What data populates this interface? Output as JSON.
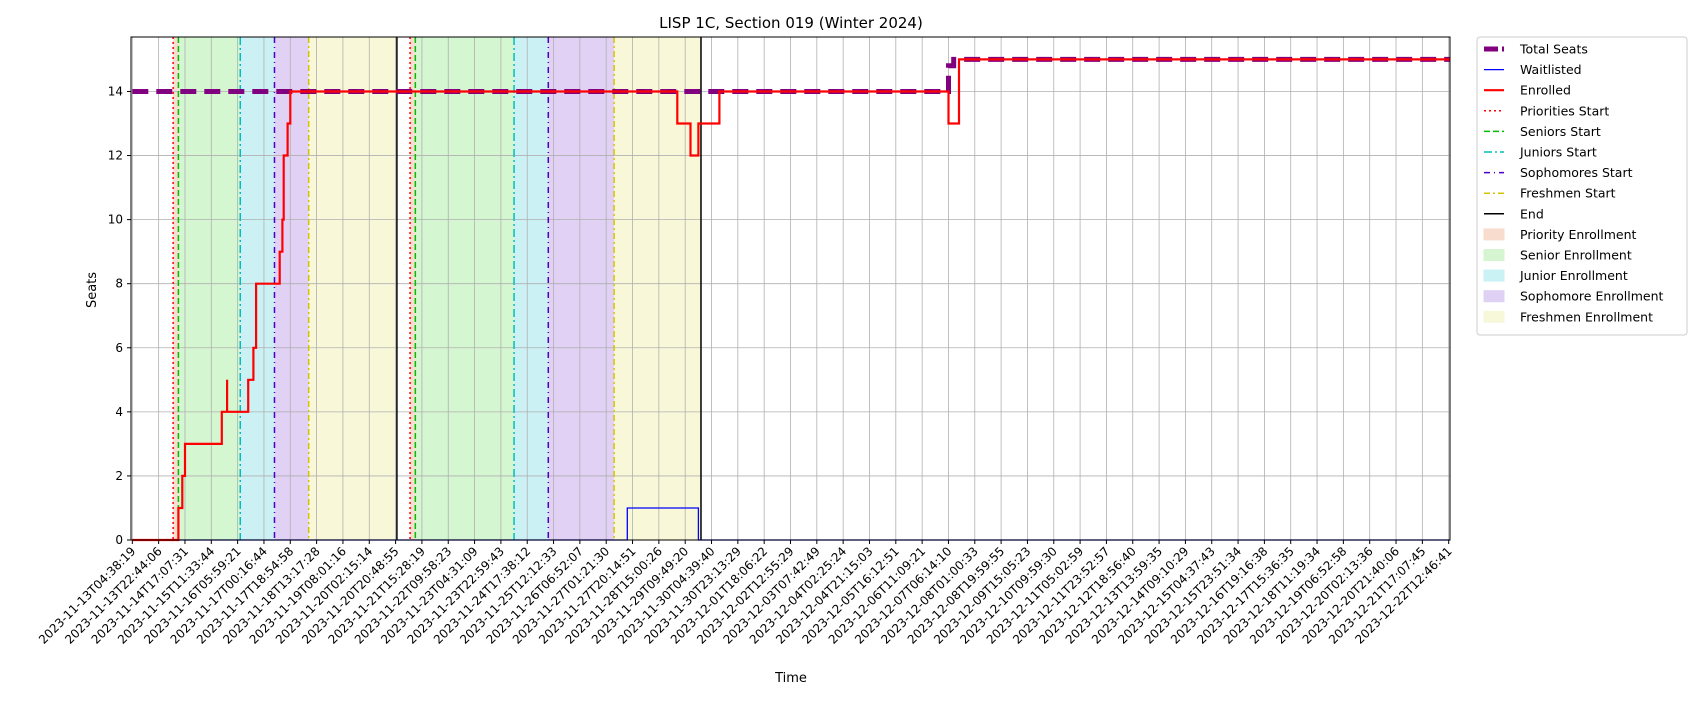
{
  "chart_data": {
    "type": "line",
    "title": "LISP 1C, Section 019 (Winter 2024)",
    "xlabel": "Time",
    "ylabel": "Seats",
    "ylim": [
      0,
      15.7
    ],
    "yticks": [
      0,
      2,
      4,
      6,
      8,
      10,
      12,
      14
    ],
    "grid": true,
    "legend_position": "outside-right",
    "x_tick_labels": [
      "2023-11-13T04:38:19",
      "2023-11-13T22:44:06",
      "2023-11-14T17:07:31",
      "2023-11-15T11:33:44",
      "2023-11-16T05:59:21",
      "2023-11-17T00:16:44",
      "2023-11-17T18:54:58",
      "2023-11-18T13:17:28",
      "2023-11-19T08:01:16",
      "2023-11-20T02:15:14",
      "2023-11-20T20:48:55",
      "2023-11-21T15:28:19",
      "2023-11-22T09:58:23",
      "2023-11-23T04:31:09",
      "2023-11-23T22:59:43",
      "2023-11-24T17:38:12",
      "2023-11-25T12:12:33",
      "2023-11-26T06:52:07",
      "2023-11-27T01:21:30",
      "2023-11-27T20:14:51",
      "2023-11-28T15:00:26",
      "2023-11-29T09:49:20",
      "2023-11-30T04:39:40",
      "2023-11-30T23:13:29",
      "2023-12-01T18:06:22",
      "2023-12-02T12:55:29",
      "2023-12-03T07:42:49",
      "2023-12-04T02:25:24",
      "2023-12-04T21:15:03",
      "2023-12-05T16:12:51",
      "2023-12-06T11:09:21",
      "2023-12-07T06:14:10",
      "2023-12-08T01:00:33",
      "2023-12-08T19:59:55",
      "2023-12-09T15:05:23",
      "2023-12-10T09:59:30",
      "2023-12-11T05:02:59",
      "2023-12-11T23:52:57",
      "2023-12-12T18:56:40",
      "2023-12-13T13:59:35",
      "2023-12-14T09:10:29",
      "2023-12-15T04:37:43",
      "2023-12-15T23:51:34",
      "2023-12-16T19:16:38",
      "2023-12-17T15:36:35",
      "2023-12-18T11:19:34",
      "2023-12-19T06:52:58",
      "2023-12-20T02:13:36",
      "2023-12-20T21:40:06",
      "2023-12-21T17:07:45",
      "2023-12-22T12:46:41"
    ],
    "x_range_index": [
      -0.05,
      50.05
    ],
    "series": [
      {
        "name": "Total Seats",
        "color": "#800080",
        "style": "dashed-thick",
        "points": [
          [
            0,
            14
          ],
          [
            31,
            14
          ],
          [
            31,
            14.8
          ],
          [
            31.2,
            14.8
          ],
          [
            31.2,
            15
          ],
          [
            50.05,
            15
          ]
        ]
      },
      {
        "name": "Waitlisted",
        "color": "#0000ff",
        "style": "solid-thin",
        "points": [
          [
            0,
            0
          ],
          [
            18.8,
            0
          ],
          [
            18.8,
            1
          ],
          [
            21.5,
            1
          ],
          [
            21.5,
            0
          ],
          [
            50.05,
            0
          ]
        ]
      },
      {
        "name": "Enrolled",
        "color": "#ff0000",
        "style": "solid-thick",
        "points": [
          [
            0,
            0
          ],
          [
            1.75,
            0
          ],
          [
            1.75,
            1
          ],
          [
            1.9,
            1
          ],
          [
            1.9,
            2
          ],
          [
            2.0,
            2
          ],
          [
            2.0,
            3
          ],
          [
            3.4,
            3
          ],
          [
            3.4,
            4
          ],
          [
            3.6,
            4
          ],
          [
            3.6,
            5
          ],
          [
            3.6,
            4
          ],
          [
            4.4,
            4
          ],
          [
            4.4,
            5
          ],
          [
            4.6,
            5
          ],
          [
            4.6,
            6
          ],
          [
            4.7,
            6
          ],
          [
            4.7,
            8
          ],
          [
            5.6,
            8
          ],
          [
            5.6,
            9
          ],
          [
            5.7,
            9
          ],
          [
            5.7,
            10
          ],
          [
            5.75,
            10
          ],
          [
            5.75,
            12
          ],
          [
            5.9,
            12
          ],
          [
            5.9,
            13
          ],
          [
            6.0,
            13
          ],
          [
            6.0,
            14
          ],
          [
            20.7,
            14
          ],
          [
            20.7,
            13
          ],
          [
            21.2,
            13
          ],
          [
            21.2,
            12
          ],
          [
            21.5,
            12
          ],
          [
            21.5,
            13
          ],
          [
            22.3,
            13
          ],
          [
            22.3,
            14
          ],
          [
            31.0,
            14
          ],
          [
            31.0,
            13
          ],
          [
            31.4,
            13
          ],
          [
            31.4,
            15
          ],
          [
            50.05,
            15
          ]
        ]
      }
    ],
    "markers": [
      {
        "name": "Priorities Start",
        "color": "#ff0000",
        "dash": "2,3",
        "x": [
          1.55,
          10.55
        ]
      },
      {
        "name": "Seniors Start",
        "color": "#00c000",
        "dash": "6,3",
        "x": [
          1.75,
          10.75
        ]
      },
      {
        "name": "Juniors Start",
        "color": "#00bfbf",
        "dash": "8,3,2,3",
        "x": [
          4.1,
          14.5
        ]
      },
      {
        "name": "Sophomores Start",
        "color": "#4b00c8",
        "dash": "6,4,1,4",
        "x": [
          5.4,
          15.8
        ]
      },
      {
        "name": "Freshmen Start",
        "color": "#d4c400",
        "dash": "6,3,2,3",
        "x": [
          6.7,
          18.3
        ]
      },
      {
        "name": "End",
        "color": "#000000",
        "dash": "",
        "x": [
          10.05,
          21.6
        ]
      }
    ],
    "phases": [
      {
        "name": "Priority Enrollment",
        "color": "#f4c7b0",
        "ranges": [
          [
            1.55,
            1.75
          ],
          [
            10.55,
            10.75
          ]
        ]
      },
      {
        "name": "Senior Enrollment",
        "color": "#b8f0b0",
        "ranges": [
          [
            1.75,
            4.1
          ],
          [
            10.75,
            14.5
          ]
        ]
      },
      {
        "name": "Junior Enrollment",
        "color": "#a8e8ee",
        "ranges": [
          [
            4.1,
            5.4
          ],
          [
            14.5,
            15.8
          ]
        ]
      },
      {
        "name": "Sophomore Enrollment",
        "color": "#cbb3ee",
        "ranges": [
          [
            5.4,
            6.7
          ],
          [
            15.8,
            18.3
          ]
        ]
      },
      {
        "name": "Freshmen Enrollment",
        "color": "#f3f3c0",
        "ranges": [
          [
            6.7,
            10.05
          ],
          [
            18.3,
            21.6
          ]
        ]
      }
    ],
    "legend": [
      "Total Seats",
      "Waitlisted",
      "Enrolled",
      "Priorities Start",
      "Seniors Start",
      "Juniors Start",
      "Sophomores Start",
      "Freshmen Start",
      "End",
      "Priority Enrollment",
      "Senior Enrollment",
      "Junior Enrollment",
      "Sophomore Enrollment",
      "Freshmen Enrollment"
    ]
  }
}
